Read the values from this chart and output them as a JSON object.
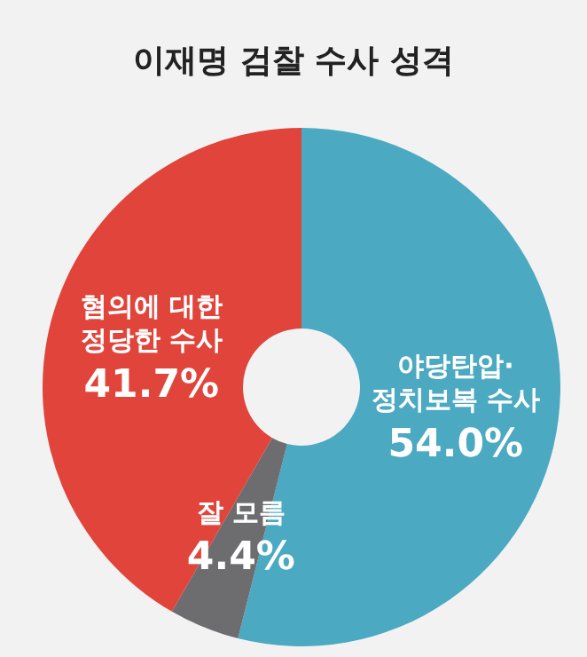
{
  "chart_data": {
    "type": "donut",
    "title": "이재명 검찰 수사 성격",
    "categories": [
      "야당탄압·\n정치보복 수사",
      "잘 모름",
      "혐의에 대한\n정당한 수사"
    ],
    "values": [
      54.0,
      4.4,
      41.7
    ],
    "value_labels": [
      "54.0%",
      "4.4%",
      "41.7%"
    ],
    "colors": [
      "#4ba9c1",
      "#6d6d6f",
      "#e0443b"
    ]
  }
}
